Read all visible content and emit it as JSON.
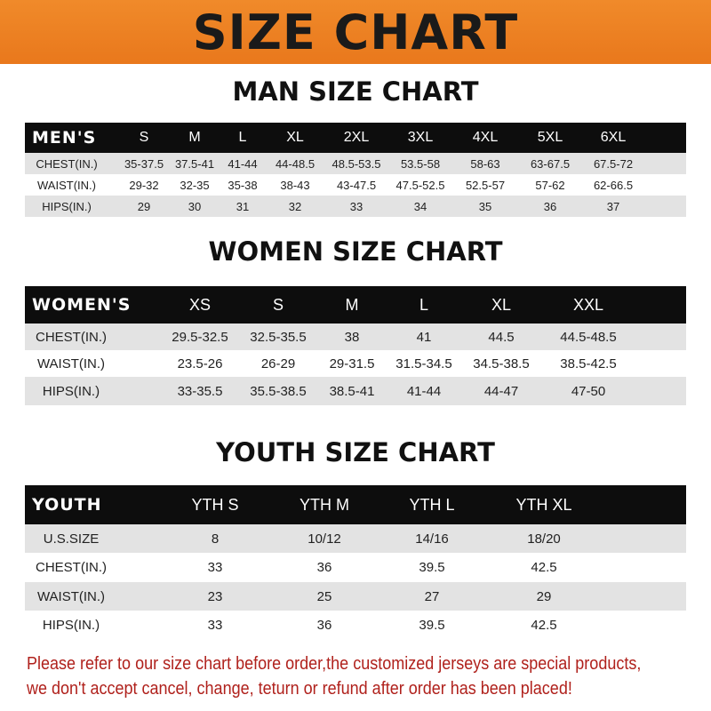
{
  "banner_title": "SIZE CHART",
  "colors": {
    "banner": "#ee8324",
    "header_row": "#0d0d0d",
    "stripe": "#e3e3e3",
    "note": "#b0211c"
  },
  "men": {
    "title": "MAN SIZE CHART",
    "header": "MEN'S",
    "sizes": [
      "S",
      "M",
      "L",
      "XL",
      "2XL",
      "3XL",
      "4XL",
      "5XL",
      "6XL"
    ],
    "rows": [
      {
        "label": "CHEST(IN.)",
        "values": [
          "35-37.5",
          "37.5-41",
          "41-44",
          "44-48.5",
          "48.5-53.5",
          "53.5-58",
          "58-63",
          "63-67.5",
          "67.5-72"
        ]
      },
      {
        "label": "WAIST(IN.)",
        "values": [
          "29-32",
          "32-35",
          "35-38",
          "38-43",
          "43-47.5",
          "47.5-52.5",
          "52.5-57",
          "57-62",
          "62-66.5"
        ]
      },
      {
        "label": "HIPS(IN.)",
        "values": [
          "29",
          "30",
          "31",
          "32",
          "33",
          "34",
          "35",
          "36",
          "37"
        ]
      }
    ]
  },
  "women": {
    "title": "WOMEN SIZE CHART",
    "header": "WOMEN'S",
    "sizes": [
      "XS",
      "S",
      "M",
      "L",
      "XL",
      "XXL"
    ],
    "rows": [
      {
        "label": "CHEST(IN.)",
        "values": [
          "29.5-32.5",
          "32.5-35.5",
          "38",
          "41",
          "44.5",
          "44.5-48.5"
        ]
      },
      {
        "label": "WAIST(IN.)",
        "values": [
          "23.5-26",
          "26-29",
          "29-31.5",
          "31.5-34.5",
          "34.5-38.5",
          "38.5-42.5"
        ]
      },
      {
        "label": "HIPS(IN.)",
        "values": [
          "33-35.5",
          "35.5-38.5",
          "38.5-41",
          "41-44",
          "44-47",
          "47-50"
        ]
      }
    ]
  },
  "youth": {
    "title": "YOUTH SIZE CHART",
    "header": "YOUTH",
    "sizes": [
      "YTH S",
      "YTH M",
      "YTH L",
      "YTH XL"
    ],
    "rows": [
      {
        "label": "U.S.SIZE",
        "values": [
          "8",
          "10/12",
          "14/16",
          "18/20"
        ]
      },
      {
        "label": "CHEST(IN.)",
        "values": [
          "33",
          "36",
          "39.5",
          "42.5"
        ]
      },
      {
        "label": "WAIST(IN.)",
        "values": [
          "23",
          "25",
          "27",
          "29"
        ]
      },
      {
        "label": "HIPS(IN.)",
        "values": [
          "33",
          "36",
          "39.5",
          "42.5"
        ]
      }
    ]
  },
  "note": {
    "line1": "Please refer to our size chart before order,the customized jerseys are special products,",
    "line2": "we don't accept cancel, change, teturn or refund after order has been placed!"
  }
}
